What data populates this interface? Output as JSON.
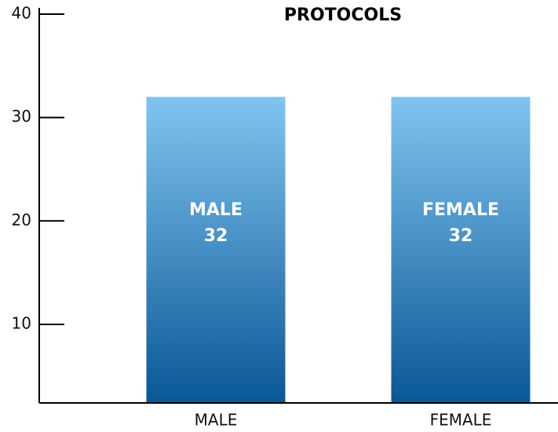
{
  "chart_data": {
    "type": "bar",
    "title": "PROTOCOLS",
    "categories": [
      "MALE",
      "FEMALE"
    ],
    "values": [
      32,
      32
    ],
    "gradient": [
      "#80c5f0",
      "#0a5796"
    ],
    "ylim": [
      2.4,
      40
    ],
    "yticks": [
      10,
      20,
      30,
      40
    ]
  }
}
